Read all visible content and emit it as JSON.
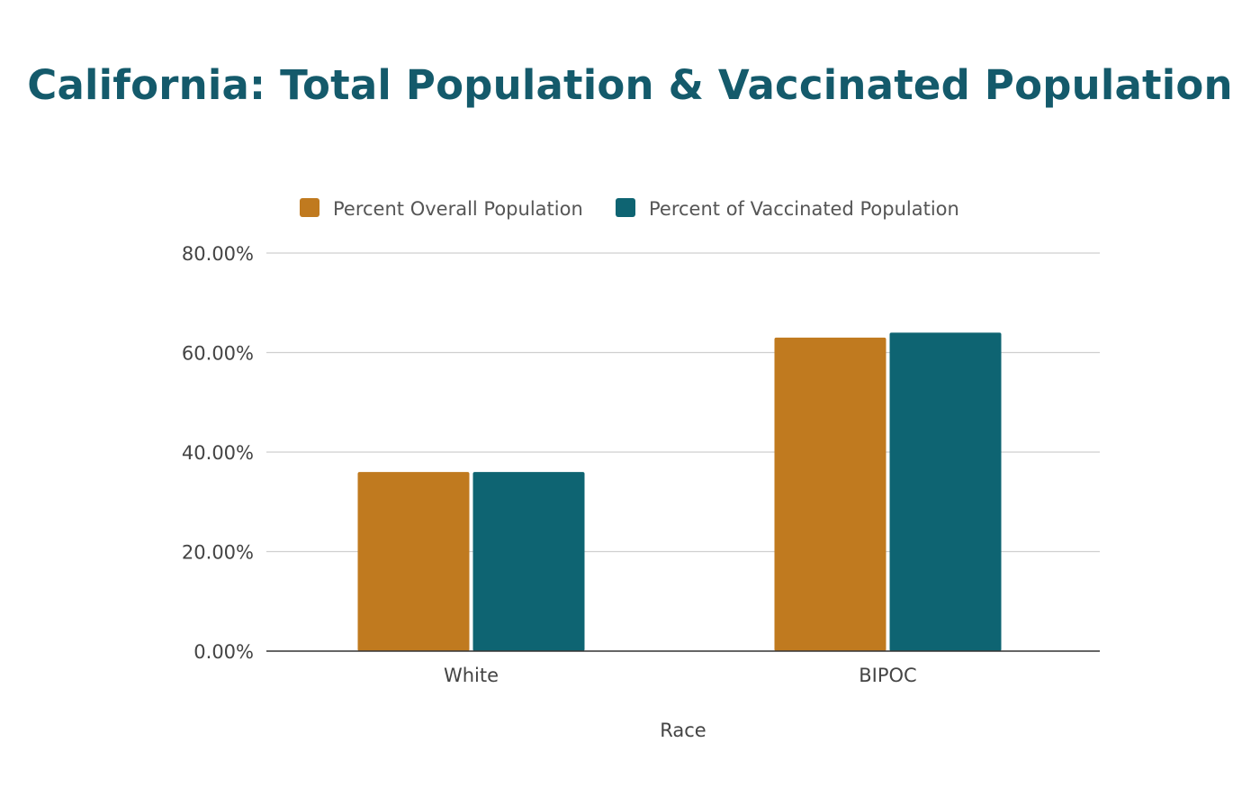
{
  "chart_data": {
    "type": "bar",
    "title": "California: Total Population & Vaccinated Population",
    "xlabel": "Race",
    "ylabel": "",
    "categories": [
      "White",
      "BIPOC"
    ],
    "series": [
      {
        "name": "Percent Overall Population",
        "values": [
          36,
          63
        ],
        "color": "#c07a1f"
      },
      {
        "name": "Percent of Vaccinated Population",
        "values": [
          36,
          64
        ],
        "color": "#0e6472"
      }
    ],
    "ylim": [
      0,
      80
    ],
    "yticks": [
      0,
      20,
      40,
      60,
      80
    ],
    "ytick_labels": [
      "0.00%",
      "20.00%",
      "40.00%",
      "60.00%",
      "80.00%"
    ],
    "legend_position": "top-center",
    "grid": true
  }
}
